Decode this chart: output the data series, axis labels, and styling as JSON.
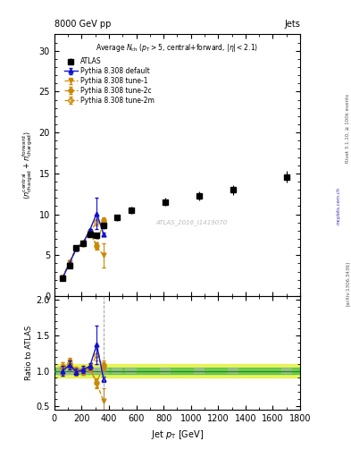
{
  "title_top": "8000 GeV pp",
  "title_right": "Jets",
  "watermark": "ATLAS_2016_I1419070",
  "atlas_x": [
    60,
    110,
    160,
    210,
    260,
    310,
    360,
    460,
    560,
    810,
    1060,
    1310,
    1700
  ],
  "atlas_y": [
    2.2,
    3.7,
    5.9,
    6.4,
    7.6,
    7.4,
    8.6,
    9.6,
    10.5,
    11.5,
    12.3,
    13.0,
    14.6
  ],
  "atlas_yerr": [
    0.15,
    0.2,
    0.25,
    0.3,
    0.3,
    0.35,
    0.35,
    0.4,
    0.45,
    0.5,
    0.55,
    0.6,
    0.7
  ],
  "pythia_default_x": [
    60,
    110,
    160,
    210,
    260,
    310,
    360
  ],
  "pythia_default_y": [
    2.2,
    4.0,
    5.8,
    6.5,
    8.1,
    10.1,
    7.6
  ],
  "pythia_default_yerr": [
    0.05,
    0.05,
    0.1,
    0.1,
    0.1,
    1.9,
    0.15
  ],
  "pythia_tune1_x": [
    60,
    110,
    160,
    210,
    260,
    310,
    360
  ],
  "pythia_tune1_y": [
    2.25,
    4.15,
    5.85,
    6.35,
    7.85,
    6.05,
    5.0
  ],
  "pythia_tune1_yerr": [
    0.05,
    0.1,
    0.1,
    0.1,
    0.15,
    0.4,
    1.5
  ],
  "pythia_tune2c_x": [
    60,
    110,
    160,
    210,
    260,
    310,
    360
  ],
  "pythia_tune2c_y": [
    2.3,
    4.1,
    5.95,
    6.55,
    7.95,
    6.15,
    9.3
  ],
  "pythia_tune2c_yerr": [
    0.05,
    0.1,
    0.1,
    0.1,
    0.15,
    0.4,
    0.35
  ],
  "pythia_tune2m_x": [
    60,
    110,
    160,
    210,
    260,
    310,
    360
  ],
  "pythia_tune2m_y": [
    2.3,
    4.05,
    5.75,
    6.35,
    7.85,
    9.05,
    9.1
  ],
  "pythia_tune2m_yerr": [
    0.05,
    0.1,
    0.1,
    0.1,
    0.15,
    0.4,
    0.35
  ],
  "color_atlas": "#000000",
  "color_default": "#1111cc",
  "color_tunes": "#cc8800",
  "xlim": [
    0,
    1800
  ],
  "ylim_main": [
    0,
    32
  ],
  "ylim_ratio": [
    0.45,
    2.05
  ],
  "yticks_main": [
    0,
    5,
    10,
    15,
    20,
    25,
    30
  ],
  "yticks_ratio": [
    0.5,
    1.0,
    1.5,
    2.0
  ]
}
